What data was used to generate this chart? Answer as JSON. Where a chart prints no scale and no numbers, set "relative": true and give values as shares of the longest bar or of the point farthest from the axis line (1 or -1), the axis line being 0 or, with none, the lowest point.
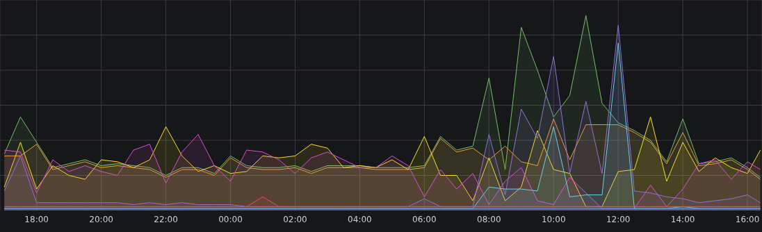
{
  "chart_data": {
    "type": "area",
    "relative": true,
    "grid": true,
    "xlim": [
      "--01-01T16:52",
      "--01-02T16:27"
    ],
    "xticks": [
      {
        "value": "--01-01T18:00",
        "label": "18:00"
      },
      {
        "value": "--01-01T20:00",
        "label": "20:00"
      },
      {
        "value": "--01-01T22:00",
        "label": "22:00"
      },
      {
        "value": "--01-02T00:00",
        "label": "00:00"
      },
      {
        "value": "--01-02T02:00",
        "label": "02:00"
      },
      {
        "value": "--01-02T04:00",
        "label": "04:00"
      },
      {
        "value": "--01-02T06:00",
        "label": "06:00"
      },
      {
        "value": "--01-02T08:00",
        "label": "08:00"
      },
      {
        "value": "--01-02T10:00",
        "label": "10:00"
      },
      {
        "value": "--01-02T12:00",
        "label": "12:00"
      },
      {
        "value": "--01-02T14:00",
        "label": "14:00"
      },
      {
        "value": "--01-02T16:00",
        "label": "16:00"
      }
    ],
    "x": [
      "--01-01T17:00",
      "--01-01T17:30",
      "--01-01T18:00",
      "--01-01T18:30",
      "--01-01T19:00",
      "--01-01T19:30",
      "--01-01T20:00",
      "--01-01T20:30",
      "--01-01T21:00",
      "--01-01T21:30",
      "--01-01T22:00",
      "--01-01T22:30",
      "--01-01T23:00",
      "--01-01T23:30",
      "--01-02T00:00",
      "--01-02T00:30",
      "--01-02T01:00",
      "--01-02T01:30",
      "--01-02T02:00",
      "--01-02T02:30",
      "--01-02T03:00",
      "--01-02T03:30",
      "--01-02T04:00",
      "--01-02T04:30",
      "--01-02T05:00",
      "--01-02T05:30",
      "--01-02T06:00",
      "--01-02T06:30",
      "--01-02T07:00",
      "--01-02T07:30",
      "--01-02T08:00",
      "--01-02T08:30",
      "--01-02T09:00",
      "--01-02T09:30",
      "--01-02T10:00",
      "--01-02T10:30",
      "--01-02T11:00",
      "--01-02T11:30",
      "--01-02T12:00",
      "--01-02T12:30",
      "--01-02T13:00",
      "--01-02T13:30",
      "--01-02T14:00",
      "--01-02T14:30",
      "--01-02T15:00",
      "--01-02T15:30",
      "--01-02T16:00",
      "--01-02T16:24"
    ],
    "series": [
      {
        "color": "#ff9830",
        "values": [
          0.28,
          0.28,
          0.34,
          0.21,
          0.23,
          0.25,
          0.22,
          0.23,
          0.22,
          0.21,
          0.17,
          0.21,
          0.21,
          0.18,
          0.27,
          0.22,
          0.21,
          0.21,
          0.22,
          0.19,
          0.22,
          0.22,
          0.22,
          0.21,
          0.21,
          0.21,
          0.22,
          0.37,
          0.3,
          0.32,
          0.26,
          0.33,
          0.25,
          0.23,
          0.47,
          0.26,
          0.44,
          0.44,
          0.44,
          0.4,
          0.35,
          0.24,
          0.4,
          0.23,
          0.24,
          0.26,
          0.21,
          0.16
        ]
      },
      {
        "color": "#73bf69",
        "values": [
          0.29,
          0.48,
          0.35,
          0.22,
          0.24,
          0.26,
          0.23,
          0.24,
          0.23,
          0.22,
          0.18,
          0.22,
          0.22,
          0.19,
          0.28,
          0.23,
          0.22,
          0.22,
          0.23,
          0.2,
          0.23,
          0.23,
          0.23,
          0.22,
          0.22,
          0.22,
          0.23,
          0.38,
          0.31,
          0.33,
          0.68,
          0.21,
          0.94,
          0.72,
          0.48,
          0.59,
          1.0,
          0.55,
          0.45,
          0.41,
          0.36,
          0.25,
          0.47,
          0.24,
          0.25,
          0.27,
          0.22,
          0.17
        ]
      },
      {
        "color": "#fade2a",
        "values": [
          0.12,
          0.35,
          0.11,
          0.23,
          0.18,
          0.16,
          0.26,
          0.25,
          0.22,
          0.26,
          0.43,
          0.28,
          0.2,
          0.23,
          0.19,
          0.2,
          0.28,
          0.27,
          0.28,
          0.34,
          0.32,
          0.22,
          0.23,
          0.22,
          0.26,
          0.21,
          0.38,
          0.18,
          0.18,
          0.05,
          0.27,
          0.05,
          0.12,
          0.41,
          0.21,
          0.19,
          0.02,
          0.02,
          0.2,
          0.21,
          0.48,
          0.15,
          0.35,
          0.2,
          0.27,
          0.22,
          0.19,
          0.31
        ]
      },
      {
        "color": "#d64fd0",
        "values": [
          0.31,
          0.3,
          0.09,
          0.26,
          0.2,
          0.23,
          0.2,
          0.18,
          0.31,
          0.34,
          0.14,
          0.3,
          0.39,
          0.23,
          0.15,
          0.31,
          0.3,
          0.26,
          0.19,
          0.27,
          0.3,
          0.26,
          0.22,
          0.22,
          0.28,
          0.23,
          0.07,
          0.21,
          0.11,
          0.19,
          0.03,
          0.15,
          0.22,
          0.05,
          0.03,
          0.17,
          0.09,
          0.01,
          0.01,
          0.01,
          0.13,
          0.02,
          0.11,
          0.24,
          0.26,
          0.16,
          0.25,
          0.21
        ]
      },
      {
        "color": "#8f72d4",
        "values": [
          0.1,
          0.28,
          0.04,
          0.04,
          0.04,
          0.04,
          0.04,
          0.04,
          0.03,
          0.04,
          0.03,
          0.04,
          0.03,
          0.03,
          0.03,
          0.02,
          0.02,
          0.02,
          0.02,
          0.02,
          0.02,
          0.02,
          0.02,
          0.02,
          0.02,
          0.02,
          0.06,
          0.02,
          0.02,
          0.02,
          0.39,
          0.08,
          0.52,
          0.37,
          0.79,
          0.19,
          0.56,
          0.19,
          0.95,
          0.1,
          0.09,
          0.07,
          0.06,
          0.04,
          0.05,
          0.06,
          0.08,
          0.04
        ]
      },
      {
        "color": "#6ed0e0",
        "values": [
          0.01,
          0.01,
          0.01,
          0.01,
          0.01,
          0.01,
          0.01,
          0.01,
          0.01,
          0.01,
          0.01,
          0.01,
          0.01,
          0.01,
          0.01,
          0.01,
          0.01,
          0.01,
          0.01,
          0.01,
          0.01,
          0.01,
          0.01,
          0.01,
          0.01,
          0.01,
          0.01,
          0.01,
          0.01,
          0.01,
          0.12,
          0.11,
          0.11,
          0.1,
          0.43,
          0.07,
          0.08,
          0.08,
          0.86,
          0.01,
          0.01,
          0.01,
          0.02,
          0.01,
          0.01,
          0.01,
          0.01,
          0.01
        ]
      },
      {
        "color": "#f2495c",
        "values": [
          0.02,
          0.02,
          0.02,
          0.02,
          0.02,
          0.02,
          0.02,
          0.02,
          0.02,
          0.02,
          0.02,
          0.02,
          0.02,
          0.02,
          0.02,
          0.02,
          0.07,
          0.02,
          0.02,
          0.02,
          0.02,
          0.02,
          0.02,
          0.02,
          0.02,
          0.02,
          0.02,
          0.02,
          0.02,
          0.02,
          0.02,
          0.02,
          0.02,
          0.02,
          0.02,
          0.02,
          0.02,
          0.02,
          0.02,
          0.02,
          0.02,
          0.02,
          0.02,
          0.02,
          0.02,
          0.02,
          0.02,
          0.02
        ]
      },
      {
        "color": "#5794f2",
        "values": [
          0.01,
          0.01,
          0.01,
          0.01,
          0.01,
          0.01,
          0.01,
          0.01,
          0.01,
          0.01,
          0.01,
          0.01,
          0.01,
          0.01,
          0.01,
          0.01,
          0.01,
          0.01,
          0.01,
          0.01,
          0.01,
          0.01,
          0.01,
          0.01,
          0.01,
          0.01,
          0.01,
          0.01,
          0.01,
          0.01,
          0.01,
          0.01,
          0.01,
          0.01,
          0.01,
          0.01,
          0.01,
          0.01,
          0.01,
          0.01,
          0.01,
          0.01,
          0.01,
          0.01,
          0.01,
          0.01,
          0.01,
          0.01
        ]
      }
    ]
  }
}
